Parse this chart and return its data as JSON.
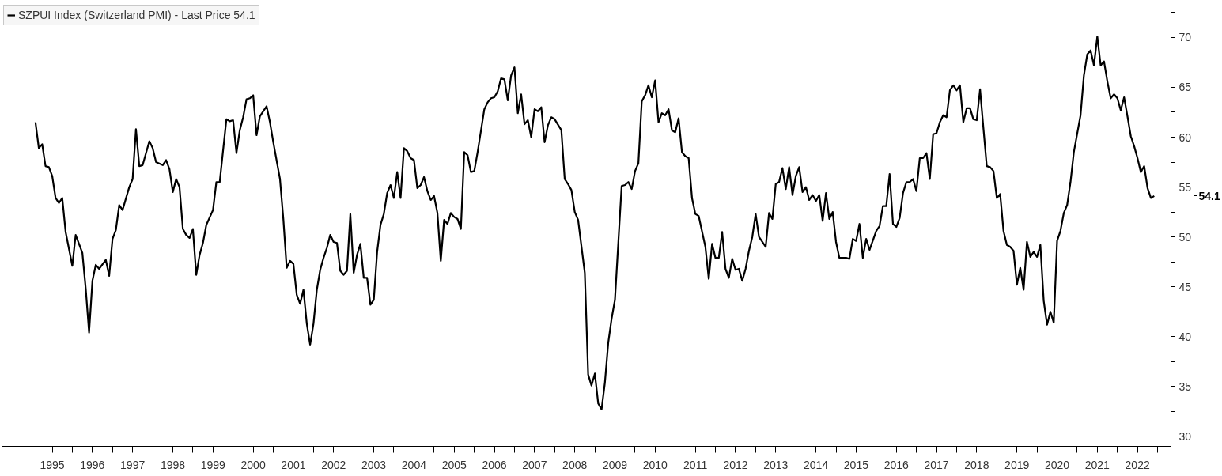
{
  "chart_data": {
    "type": "line",
    "xlim": [
      "1994-04",
      "2023-05"
    ],
    "ylim": [
      29,
      73.4
    ],
    "xticks": [
      {
        "value": "1995-01",
        "label": null
      },
      {
        "value": "1995-07",
        "label": "1995"
      },
      {
        "value": "1996-01",
        "label": null
      },
      {
        "value": "1996-07",
        "label": "1996"
      },
      {
        "value": "1997-01",
        "label": null
      },
      {
        "value": "1997-07",
        "label": "1997"
      },
      {
        "value": "1998-01",
        "label": null
      },
      {
        "value": "1998-07",
        "label": "1998"
      },
      {
        "value": "1999-01",
        "label": null
      },
      {
        "value": "1999-07",
        "label": "1999"
      },
      {
        "value": "2000-01",
        "label": null
      },
      {
        "value": "2000-07",
        "label": "2000"
      },
      {
        "value": "2001-01",
        "label": null
      },
      {
        "value": "2001-07",
        "label": "2001"
      },
      {
        "value": "2002-01",
        "label": null
      },
      {
        "value": "2002-07",
        "label": "2002"
      },
      {
        "value": "2003-01",
        "label": null
      },
      {
        "value": "2003-07",
        "label": "2003"
      },
      {
        "value": "2004-01",
        "label": null
      },
      {
        "value": "2004-07",
        "label": "2004"
      },
      {
        "value": "2005-01",
        "label": null
      },
      {
        "value": "2005-07",
        "label": "2005"
      },
      {
        "value": "2006-01",
        "label": null
      },
      {
        "value": "2006-07",
        "label": "2006"
      },
      {
        "value": "2007-01",
        "label": null
      },
      {
        "value": "2007-07",
        "label": "2007"
      },
      {
        "value": "2008-01",
        "label": null
      },
      {
        "value": "2008-07",
        "label": "2008"
      },
      {
        "value": "2009-01",
        "label": null
      },
      {
        "value": "2009-07",
        "label": "2009"
      },
      {
        "value": "2010-01",
        "label": null
      },
      {
        "value": "2010-07",
        "label": "2010"
      },
      {
        "value": "2011-01",
        "label": null
      },
      {
        "value": "2011-07",
        "label": "2011"
      },
      {
        "value": "2012-01",
        "label": null
      },
      {
        "value": "2012-07",
        "label": "2012"
      },
      {
        "value": "2013-01",
        "label": null
      },
      {
        "value": "2013-07",
        "label": "2013"
      },
      {
        "value": "2014-01",
        "label": null
      },
      {
        "value": "2014-07",
        "label": "2014"
      },
      {
        "value": "2015-01",
        "label": null
      },
      {
        "value": "2015-07",
        "label": "2015"
      },
      {
        "value": "2016-01",
        "label": null
      },
      {
        "value": "2016-07",
        "label": "2016"
      },
      {
        "value": "2017-01",
        "label": null
      },
      {
        "value": "2017-07",
        "label": "2017"
      },
      {
        "value": "2018-01",
        "label": null
      },
      {
        "value": "2018-07",
        "label": "2018"
      },
      {
        "value": "2019-01",
        "label": null
      },
      {
        "value": "2019-07",
        "label": "2019"
      },
      {
        "value": "2020-01",
        "label": null
      },
      {
        "value": "2020-07",
        "label": "2020"
      },
      {
        "value": "2021-01",
        "label": null
      },
      {
        "value": "2021-07",
        "label": "2021"
      },
      {
        "value": "2022-01",
        "label": null
      },
      {
        "value": "2022-07",
        "label": "2022"
      },
      {
        "value": "2023-01",
        "label": null
      }
    ],
    "yticks": [
      30,
      {
        "value": 32.5,
        "label": null
      },
      35,
      {
        "value": 37.5,
        "label": null
      },
      40,
      {
        "value": 42.5,
        "label": null
      },
      45,
      {
        "value": 47.5,
        "label": null
      },
      50,
      {
        "value": 52.5,
        "label": null
      },
      55,
      {
        "value": 57.5,
        "label": null
      },
      60,
      {
        "value": 62.5,
        "label": null
      },
      65,
      {
        "value": 67.5,
        "label": null
      },
      70,
      {
        "value": 72.5,
        "label": null
      }
    ],
    "grid": false,
    "legend": "top left",
    "annotations": [
      "54.1"
    ],
    "series": [
      {
        "name": "SZPUI Index (Switzerland PMI) - Last Price 54.1",
        "color": "#000000",
        "x": [
          "1995-02",
          "1995-03",
          "1995-04",
          "1995-05",
          "1995-06",
          "1995-07",
          "1995-08",
          "1995-09",
          "1995-10",
          "1995-11",
          "1996-01",
          "1996-02",
          "1996-04",
          "1996-05",
          "1996-06",
          "1996-07",
          "1996-08",
          "1996-09",
          "1996-11",
          "1996-12",
          "1997-01",
          "1997-02",
          "1997-03",
          "1997-04",
          "1997-06",
          "1997-07",
          "1997-08",
          "1997-09",
          "1997-10",
          "1997-12",
          "1998-01",
          "1998-02",
          "1998-04",
          "1998-05",
          "1998-06",
          "1998-07",
          "1998-08",
          "1998-09",
          "1998-10",
          "1998-11",
          "1998-12",
          "1999-01",
          "1999-02",
          "1999-03",
          "1999-04",
          "1999-05",
          "1999-07",
          "1999-08",
          "1999-09",
          "1999-11",
          "1999-12",
          "2000-01",
          "2000-02",
          "2000-03",
          "2000-04",
          "2000-05",
          "2000-06",
          "2000-07",
          "2000-08",
          "2000-09",
          "2000-11",
          "2000-12",
          "2001-01",
          "2001-03",
          "2001-04",
          "2001-05",
          "2001-06",
          "2001-07",
          "2001-08",
          "2001-09",
          "2001-10",
          "2001-11",
          "2001-12",
          "2002-01",
          "2002-02",
          "2002-03",
          "2002-04",
          "2002-05",
          "2002-06",
          "2002-07",
          "2002-08",
          "2002-09",
          "2002-10",
          "2002-11",
          "2002-12",
          "2003-01",
          "2003-02",
          "2003-03",
          "2003-04",
          "2003-05",
          "2003-06",
          "2003-07",
          "2003-08",
          "2003-09",
          "2003-10",
          "2003-11",
          "2003-12",
          "2004-01",
          "2004-02",
          "2004-03",
          "2004-04",
          "2004-05",
          "2004-06",
          "2004-07",
          "2004-08",
          "2004-09",
          "2004-10",
          "2004-11",
          "2004-12",
          "2005-01",
          "2005-02",
          "2005-03",
          "2005-04",
          "2005-05",
          "2005-06",
          "2005-07",
          "2005-08",
          "2005-09",
          "2005-10",
          "2005-11",
          "2005-12",
          "2006-01",
          "2006-02",
          "2006-04",
          "2006-05",
          "2006-06",
          "2006-07",
          "2006-08",
          "2006-09",
          "2006-10",
          "2006-11",
          "2006-12",
          "2007-01",
          "2007-02",
          "2007-03",
          "2007-04",
          "2007-05",
          "2007-06",
          "2007-07",
          "2007-08",
          "2007-09",
          "2007-10",
          "2007-11",
          "2007-12",
          "2008-01",
          "2008-03",
          "2008-04",
          "2008-05",
          "2008-06",
          "2008-07",
          "2008-08",
          "2008-10",
          "2008-11",
          "2008-12",
          "2009-01",
          "2009-02",
          "2009-03",
          "2009-04",
          "2009-05",
          "2009-06",
          "2009-07",
          "2009-09",
          "2009-10",
          "2009-11",
          "2009-12",
          "2010-01",
          "2010-02",
          "2010-03",
          "2010-04",
          "2010-05",
          "2010-06",
          "2010-07",
          "2010-08",
          "2010-09",
          "2010-10",
          "2010-11",
          "2010-12",
          "2011-01",
          "2011-02",
          "2011-03",
          "2011-04",
          "2011-05",
          "2011-06",
          "2011-07",
          "2011-08",
          "2011-10",
          "2011-11",
          "2011-12",
          "2012-01",
          "2012-02",
          "2012-03",
          "2012-04",
          "2012-05",
          "2012-06",
          "2012-07",
          "2012-08",
          "2012-09",
          "2012-10",
          "2012-11",
          "2012-12",
          "2013-01",
          "2013-02",
          "2013-03",
          "2013-04",
          "2013-05",
          "2013-06",
          "2013-07",
          "2013-08",
          "2013-09",
          "2013-10",
          "2013-11",
          "2013-12",
          "2014-01",
          "2014-02",
          "2014-03",
          "2014-04",
          "2014-05",
          "2014-06",
          "2014-07",
          "2014-08",
          "2014-09",
          "2014-10",
          "2014-11",
          "2014-12",
          "2015-01",
          "2015-02",
          "2015-04",
          "2015-05",
          "2015-06",
          "2015-07",
          "2015-08",
          "2015-09",
          "2015-10",
          "2015-11",
          "2016-01",
          "2016-02",
          "2016-03",
          "2016-04",
          "2016-05",
          "2016-06",
          "2016-07",
          "2016-08",
          "2016-09",
          "2016-10",
          "2016-11",
          "2016-12",
          "2017-01",
          "2017-02",
          "2017-03",
          "2017-04",
          "2017-05",
          "2017-06",
          "2017-07",
          "2017-08",
          "2017-09",
          "2017-10",
          "2017-11",
          "2017-12",
          "2018-01",
          "2018-02",
          "2018-03",
          "2018-04",
          "2018-05",
          "2018-06",
          "2018-07",
          "2018-08",
          "2018-09",
          "2018-10",
          "2018-11",
          "2018-12",
          "2019-01",
          "2019-02",
          "2019-03",
          "2019-04",
          "2019-05",
          "2019-06",
          "2019-07",
          "2019-08",
          "2019-09",
          "2019-10",
          "2019-11",
          "2019-12",
          "2020-01",
          "2020-02",
          "2020-03",
          "2020-04",
          "2020-05",
          "2020-06",
          "2020-07",
          "2020-08",
          "2020-09",
          "2020-10",
          "2020-11",
          "2020-12",
          "2021-02",
          "2021-03",
          "2021-04",
          "2021-05",
          "2021-06",
          "2021-07",
          "2021-08",
          "2021-09",
          "2021-10",
          "2021-11",
          "2021-12",
          "2022-01",
          "2022-02",
          "2022-03",
          "2022-04",
          "2022-05",
          "2022-06",
          "2022-07",
          "2022-08",
          "2022-09",
          "2022-10",
          "2022-11",
          "2022-12"
        ],
        "values": [
          61.5,
          58.9,
          59.3,
          57.1,
          57.0,
          56.1,
          53.9,
          53.4,
          53.9,
          50.5,
          47.1,
          50.2,
          48.4,
          44.8,
          40.4,
          45.6,
          47.2,
          46.8,
          47.7,
          46.1,
          49.8,
          50.7,
          53.2,
          52.7,
          55.0,
          55.8,
          60.8,
          57.1,
          57.2,
          59.6,
          58.9,
          57.5,
          57.2,
          57.7,
          56.8,
          54.5,
          55.8,
          55.0,
          50.8,
          50.2,
          49.9,
          50.8,
          46.2,
          48.2,
          49.4,
          51.2,
          52.7,
          55.5,
          55.5,
          61.8,
          61.6,
          61.7,
          58.4,
          60.7,
          62.0,
          63.8,
          63.9,
          64.2,
          60.2,
          62.1,
          63.1,
          61.5,
          59.5,
          55.8,
          51.8,
          46.9,
          47.6,
          47.3,
          44.2,
          43.3,
          44.7,
          41.3,
          39.2,
          41.3,
          44.7,
          46.7,
          47.9,
          48.9,
          50.2,
          49.5,
          49.4,
          46.6,
          46.2,
          46.6,
          52.3,
          46.4,
          48.2,
          49.3,
          45.9,
          45.9,
          43.2,
          43.7,
          48.5,
          51.2,
          52.3,
          54.4,
          55.2,
          53.9,
          56.5,
          53.9,
          58.9,
          58.6,
          57.9,
          57.7,
          54.9,
          55.2,
          56.0,
          54.6,
          53.7,
          54.1,
          52.4,
          47.6,
          51.7,
          51.3,
          52.4,
          52.0,
          51.8,
          50.8,
          58.5,
          58.2,
          56.5,
          56.6,
          58.5,
          62.8,
          63.5,
          63.9,
          64.0,
          64.6,
          65.9,
          65.8,
          63.7,
          66.2,
          67.0,
          62.4,
          64.3,
          61.3,
          61.7,
          60.0,
          62.8,
          62.6,
          63.0,
          59.5,
          61.2,
          62.0,
          61.8,
          60.7,
          55.8,
          55.3,
          54.7,
          52.5,
          51.7,
          46.4,
          36.2,
          35.1,
          36.3,
          33.3,
          32.7,
          35.4,
          39.4,
          41.8,
          43.7,
          55.1,
          55.2,
          55.5,
          54.8,
          56.6,
          57.4,
          63.6,
          64.2,
          65.2,
          64.0,
          65.7,
          61.5,
          62.4,
          62.2,
          62.8,
          60.7,
          60.5,
          61.9,
          58.5,
          58.1,
          57.9,
          53.9,
          52.3,
          52.1,
          49.0,
          45.8,
          49.3,
          47.9,
          47.9,
          50.5,
          46.8,
          45.9,
          47.8,
          46.7,
          46.8,
          45.6,
          46.8,
          48.6,
          50.0,
          52.3,
          50.0,
          49.5,
          49.0,
          52.4,
          51.8,
          55.3,
          55.5,
          56.9,
          54.8,
          57.0,
          54.2,
          56.1,
          57.0,
          54.5,
          55.0,
          53.7,
          54.2,
          53.6,
          54.2,
          51.6,
          54.4,
          51.8,
          52.5,
          49.5,
          47.9,
          47.9,
          47.8,
          49.8,
          49.6,
          51.3,
          47.9,
          49.8,
          48.7,
          50.6,
          51.1,
          53.1,
          53.1,
          56.3,
          51.3,
          51.0,
          51.9,
          54.4,
          55.5,
          55.5,
          55.8,
          54.6,
          57.9,
          57.9,
          58.4,
          55.8,
          60.3,
          60.4,
          61.5,
          62.2,
          62.0,
          64.7,
          65.2,
          64.7,
          65.2,
          61.5,
          62.9,
          62.9,
          61.8,
          61.7,
          64.8,
          60.9,
          57.1,
          57.0,
          56.6,
          53.9,
          54.3,
          50.6,
          49.2,
          49.0,
          48.6,
          45.2,
          46.9,
          44.7,
          49.5,
          48.0,
          48.5,
          48.0,
          49.2,
          43.6,
          41.2,
          42.5,
          41.4,
          49.6,
          50.6,
          52.4,
          53.2,
          55.5,
          58.5,
          62.2,
          66.2,
          68.3,
          68.7,
          67.2,
          70.1,
          67.2,
          67.6,
          65.6,
          63.9,
          64.3,
          63.9,
          62.7,
          64.0,
          62.1,
          60.1,
          59.1,
          57.9,
          56.5,
          57.1,
          54.9,
          53.9,
          54.1
        ]
      }
    ]
  }
}
